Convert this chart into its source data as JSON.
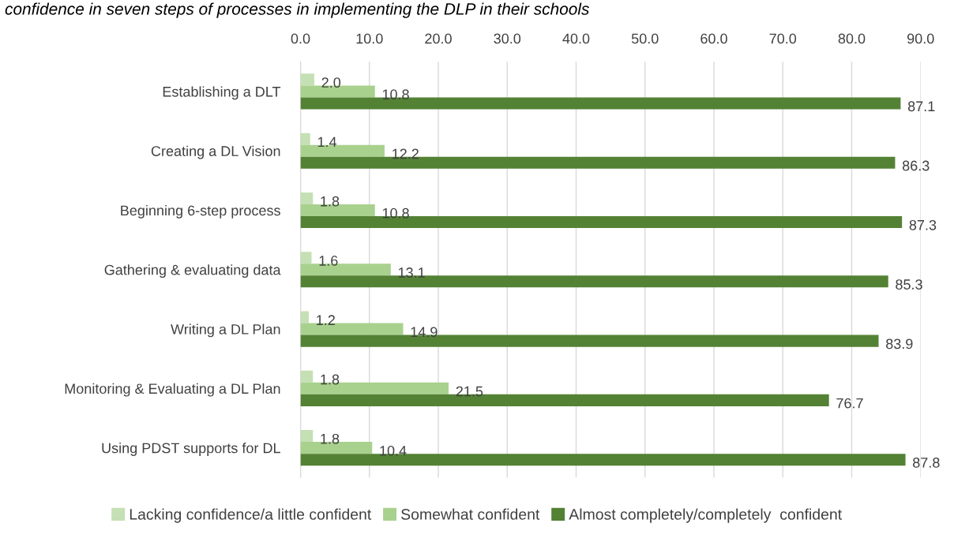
{
  "chart_data": {
    "type": "bar",
    "orientation": "horizontal",
    "title": "confidence in seven steps of processes in implementing the DLP in their schools",
    "categories": [
      "Establishing a DLT",
      "Creating a DL Vision",
      "Beginning 6-step process",
      "Gathering & evaluating data",
      "Writing a DL Plan",
      "Monitoring & Evaluating a DL Plan",
      "Using PDST supports for DL"
    ],
    "series": [
      {
        "name": "Lacking confidence/a little confident",
        "color": "#c5e0b4",
        "values": [
          2.0,
          1.4,
          1.8,
          1.6,
          1.2,
          1.8,
          1.8
        ],
        "value_labels": [
          "2.0",
          "1.4",
          "1.8",
          "1.6",
          "1.2",
          "1.8",
          "1.8"
        ]
      },
      {
        "name": "Somewhat confident",
        "color": "#a9d18e",
        "values": [
          10.8,
          12.2,
          10.8,
          13.1,
          14.9,
          21.5,
          10.4
        ],
        "value_labels": [
          "10.8",
          "12.2",
          "10.8",
          "13.1",
          "14.9",
          "21.5",
          "10.4"
        ]
      },
      {
        "name": "Almost completely/completely  confident",
        "color": "#548235",
        "values": [
          87.1,
          86.3,
          87.3,
          85.3,
          83.9,
          76.7,
          87.8
        ],
        "value_labels": [
          "87.1",
          "86.3",
          "87.3",
          "85.3",
          "83.9",
          "76.7",
          "87.8"
        ]
      }
    ],
    "xlim": [
      0,
      90
    ],
    "xticks": [
      {
        "value": 0,
        "label": "0.0"
      },
      {
        "value": 10,
        "label": "10.0"
      },
      {
        "value": 20,
        "label": "20.0"
      },
      {
        "value": 30,
        "label": "30.0"
      },
      {
        "value": 40,
        "label": "40.0"
      },
      {
        "value": 50,
        "label": "50.0"
      },
      {
        "value": 60,
        "label": "60.0"
      },
      {
        "value": 70,
        "label": "70.0"
      },
      {
        "value": 80,
        "label": "80.0"
      },
      {
        "value": 90,
        "label": "90.0"
      }
    ],
    "grid": "x",
    "legend": "bottom"
  }
}
